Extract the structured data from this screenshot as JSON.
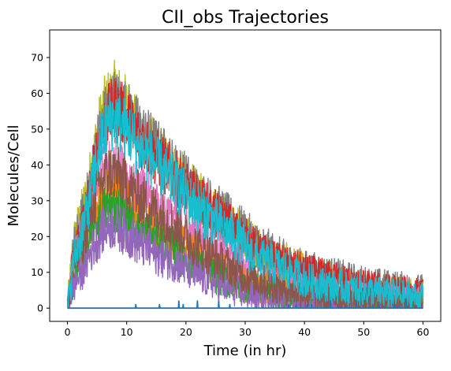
{
  "chart_data": {
    "type": "line",
    "title": "CII_obs Trajectories",
    "xlabel": "Time (in hr)",
    "ylabel": "Molecules/Cell",
    "xlim": [
      -3,
      63
    ],
    "ylim": [
      -3.7,
      77.7
    ],
    "xticks": [
      "0",
      "10",
      "20",
      "30",
      "40",
      "50",
      "60"
    ],
    "yticks": [
      "0",
      "10",
      "20",
      "30",
      "40",
      "50",
      "60",
      "70"
    ],
    "grid": false,
    "legend": "none",
    "series_colors": [
      "#1f77b4",
      "#ff7f0e",
      "#2ca02c",
      "#d62728",
      "#9467bd",
      "#8c564b",
      "#e377c2",
      "#7f7f7f",
      "#bcbd22",
      "#17becf"
    ],
    "series": [
      {
        "color": "#bcbd22",
        "x": [
          0,
          1,
          2,
          3,
          4,
          5,
          6,
          7,
          8,
          10,
          12,
          15,
          18,
          20,
          22,
          25,
          28,
          30,
          32,
          35,
          38,
          40,
          45,
          50,
          55,
          60
        ],
        "y": [
          0,
          18,
          24,
          30,
          38,
          48,
          55,
          58,
          60,
          56,
          50,
          44,
          38,
          35,
          31,
          27,
          23,
          20,
          17,
          14,
          12,
          10,
          8,
          6,
          5,
          4
        ]
      },
      {
        "color": "#7f7f7f",
        "x": [
          0,
          1,
          2,
          3,
          4,
          5,
          6,
          7,
          8,
          10,
          12,
          15,
          18,
          20,
          22,
          25,
          28,
          30,
          32,
          35,
          38,
          40,
          45,
          50,
          55,
          60
        ],
        "y": [
          0,
          16,
          22,
          28,
          36,
          46,
          52,
          56,
          58,
          55,
          50,
          45,
          39,
          36,
          32,
          28,
          24,
          21,
          18,
          15,
          12,
          11,
          9,
          7,
          6,
          5
        ]
      },
      {
        "color": "#d62728",
        "x": [
          0,
          1,
          2,
          3,
          4,
          5,
          6,
          7,
          8,
          10,
          12,
          15,
          18,
          20,
          22,
          25,
          28,
          30,
          32,
          35,
          38,
          40,
          45,
          50,
          55,
          60
        ],
        "y": [
          0,
          14,
          20,
          26,
          34,
          44,
          50,
          54,
          56,
          53,
          48,
          42,
          37,
          33,
          30,
          26,
          22,
          19,
          16,
          13,
          11,
          10,
          8,
          6,
          5,
          4
        ]
      },
      {
        "color": "#e377c2",
        "x": [
          0,
          1,
          2,
          3,
          4,
          5,
          6,
          7,
          8,
          10,
          12,
          15,
          18,
          20,
          22,
          25,
          28,
          30,
          32,
          35,
          38,
          40,
          45,
          50,
          55,
          60
        ],
        "y": [
          0,
          12,
          18,
          22,
          28,
          34,
          38,
          40,
          40,
          37,
          33,
          29,
          25,
          22,
          19,
          16,
          13,
          11,
          9,
          7,
          6,
          5,
          4,
          3,
          3,
          2
        ]
      },
      {
        "color": "#ff7f0e",
        "x": [
          0,
          1,
          2,
          3,
          4,
          5,
          6,
          7,
          8,
          10,
          12,
          15,
          18,
          20,
          22,
          25,
          28,
          30,
          32,
          35,
          38,
          40,
          45,
          50,
          55,
          60
        ],
        "y": [
          0,
          10,
          15,
          19,
          24,
          28,
          31,
          32,
          32,
          29,
          26,
          22,
          19,
          16,
          14,
          11,
          9,
          7,
          6,
          5,
          4,
          3,
          2,
          2,
          1,
          1
        ]
      },
      {
        "color": "#2ca02c",
        "x": [
          0,
          1,
          2,
          3,
          4,
          5,
          6,
          7,
          8,
          10,
          12,
          15,
          18,
          20,
          22,
          25,
          28,
          30,
          32,
          35,
          38,
          40,
          45,
          50,
          55,
          60
        ],
        "y": [
          0,
          8,
          12,
          16,
          20,
          24,
          27,
          28,
          28,
          25,
          22,
          19,
          16,
          14,
          12,
          9,
          7,
          6,
          5,
          4,
          3,
          3,
          2,
          1,
          1,
          1
        ]
      },
      {
        "color": "#9467bd",
        "x": [
          0,
          1,
          2,
          3,
          4,
          5,
          6,
          7,
          8,
          10,
          12,
          15,
          18,
          20,
          22,
          25,
          28,
          30,
          32,
          35,
          38,
          40,
          45,
          50,
          55,
          60
        ],
        "y": [
          0,
          6,
          9,
          12,
          16,
          19,
          22,
          23,
          23,
          21,
          18,
          15,
          13,
          11,
          9,
          7,
          5,
          4,
          3,
          3,
          2,
          2,
          1,
          1,
          1,
          0
        ]
      },
      {
        "color": "#8c564b",
        "x": [
          0,
          1,
          2,
          3,
          4,
          5,
          6,
          7,
          8,
          10,
          12,
          15,
          18,
          20,
          22,
          25,
          28,
          30,
          32,
          35,
          38,
          40,
          45,
          50,
          55,
          60
        ],
        "y": [
          0,
          11,
          16,
          21,
          27,
          33,
          36,
          38,
          38,
          35,
          31,
          27,
          23,
          20,
          17,
          14,
          11,
          9,
          8,
          6,
          5,
          4,
          3,
          2,
          2,
          1
        ]
      },
      {
        "color": "#17becf",
        "x": [
          0,
          1,
          2,
          3,
          4,
          5,
          6,
          7,
          8,
          10,
          12,
          15,
          18,
          20,
          22,
          25,
          28,
          30,
          32,
          35,
          38,
          40,
          45,
          50,
          55,
          60
        ],
        "y": [
          0,
          13,
          19,
          25,
          33,
          42,
          48,
          52,
          53,
          50,
          45,
          40,
          35,
          31,
          28,
          24,
          20,
          17,
          14,
          12,
          10,
          8,
          6,
          5,
          4,
          3
        ]
      },
      {
        "color": "#1f77b4",
        "x": [
          0,
          1,
          5,
          8,
          10,
          15,
          20,
          25,
          30,
          35,
          40,
          45,
          50,
          55,
          60
        ],
        "y": [
          0,
          0.5,
          0.5,
          1,
          0.5,
          0.5,
          0.5,
          0.5,
          0,
          0,
          0,
          0,
          0,
          0,
          0
        ]
      }
    ]
  }
}
